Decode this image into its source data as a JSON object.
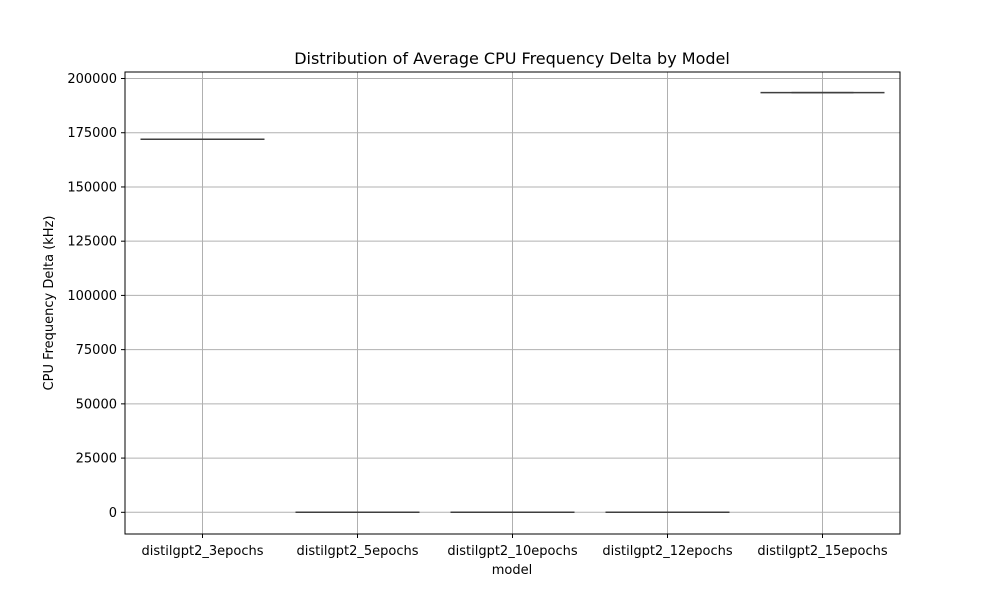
{
  "chart_data": {
    "type": "box",
    "title": "Distribution of Average CPU Frequency Delta by Model",
    "xlabel": "model",
    "ylabel": "CPU Frequency Delta (kHz)",
    "categories": [
      "distilgpt2_3epochs",
      "distilgpt2_5epochs",
      "distilgpt2_10epochs",
      "distilgpt2_12epochs",
      "distilgpt2_15epochs"
    ],
    "values": [
      172000,
      0,
      0,
      0,
      193500
    ],
    "ylim": [
      -10000,
      203000
    ],
    "yticks": [
      0,
      25000,
      50000,
      75000,
      100000,
      125000,
      150000,
      175000,
      200000
    ],
    "ytick_labels": [
      "0",
      "25000",
      "50000",
      "75000",
      "100000",
      "125000",
      "150000",
      "175000",
      "200000"
    ],
    "grid": true
  }
}
